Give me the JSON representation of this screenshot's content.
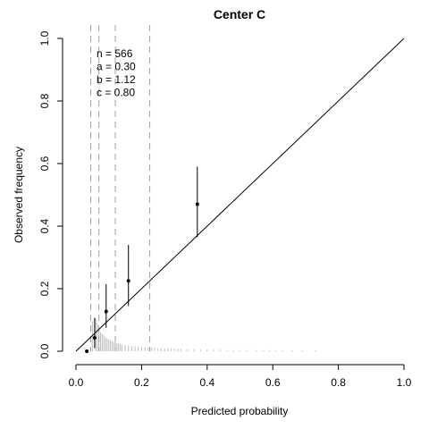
{
  "chart_data": {
    "type": "scatter",
    "title": "Center C",
    "xlabel": "Predicted probability",
    "ylabel": "Observed frequency",
    "xlim": [
      0,
      1
    ],
    "ylim": [
      0,
      1
    ],
    "xticks": [
      "0.0",
      "0.2",
      "0.4",
      "0.6",
      "0.8",
      "1.0"
    ],
    "yticks": [
      "0.0",
      "0.2",
      "0.4",
      "0.6",
      "0.8",
      "1.0"
    ],
    "grid": false,
    "stats": [
      "n = 566",
      "a = 0.30",
      "b = 1.12",
      "c = 0.80"
    ],
    "reference_line": [
      [
        0,
        0
      ],
      [
        1,
        1
      ]
    ],
    "group_boundaries": [
      0.045,
      0.07,
      0.12,
      0.225
    ],
    "points": [
      {
        "x": 0.033,
        "y": 0.0,
        "lo": 0.0,
        "hi": 0.0
      },
      {
        "x": 0.057,
        "y": 0.043,
        "lo": 0.01,
        "hi": 0.107
      },
      {
        "x": 0.092,
        "y": 0.127,
        "lo": 0.075,
        "hi": 0.215
      },
      {
        "x": 0.16,
        "y": 0.225,
        "lo": 0.145,
        "hi": 0.34
      },
      {
        "x": 0.37,
        "y": 0.47,
        "lo": 0.365,
        "hi": 0.59
      }
    ],
    "spike_histogram": [
      [
        0.05,
        0.095
      ],
      [
        0.06,
        0.105
      ],
      [
        0.065,
        0.09
      ],
      [
        0.07,
        0.075
      ],
      [
        0.075,
        0.06
      ],
      [
        0.08,
        0.055
      ],
      [
        0.085,
        0.05
      ],
      [
        0.09,
        0.045
      ],
      [
        0.095,
        0.04
      ],
      [
        0.1,
        0.038
      ],
      [
        0.105,
        0.035
      ],
      [
        0.11,
        0.033
      ],
      [
        0.115,
        0.03
      ],
      [
        0.12,
        0.028
      ],
      [
        0.125,
        0.026
      ],
      [
        0.13,
        0.025
      ],
      [
        0.135,
        0.023
      ],
      [
        0.14,
        0.022
      ],
      [
        0.15,
        0.02
      ],
      [
        0.16,
        0.019
      ],
      [
        0.17,
        0.017
      ],
      [
        0.18,
        0.016
      ],
      [
        0.19,
        0.015
      ],
      [
        0.2,
        0.014
      ],
      [
        0.21,
        0.013
      ],
      [
        0.22,
        0.012
      ],
      [
        0.23,
        0.012
      ],
      [
        0.24,
        0.011
      ],
      [
        0.25,
        0.01
      ],
      [
        0.26,
        0.01
      ],
      [
        0.27,
        0.009
      ],
      [
        0.28,
        0.009
      ],
      [
        0.29,
        0.008
      ],
      [
        0.3,
        0.008
      ],
      [
        0.31,
        0.007
      ],
      [
        0.32,
        0.007
      ],
      [
        0.34,
        0.006
      ],
      [
        0.36,
        0.006
      ],
      [
        0.38,
        0.006
      ],
      [
        0.4,
        0.005
      ],
      [
        0.42,
        0.005
      ],
      [
        0.44,
        0.005
      ],
      [
        0.46,
        0.004
      ],
      [
        0.48,
        0.004
      ],
      [
        0.5,
        0.004
      ],
      [
        0.52,
        0.004
      ],
      [
        0.55,
        0.004
      ],
      [
        0.57,
        0.003
      ],
      [
        0.59,
        0.004
      ],
      [
        0.61,
        0.003
      ],
      [
        0.63,
        0.003
      ],
      [
        0.66,
        0.003
      ],
      [
        0.69,
        0.003
      ],
      [
        0.73,
        0.003
      ]
    ]
  }
}
